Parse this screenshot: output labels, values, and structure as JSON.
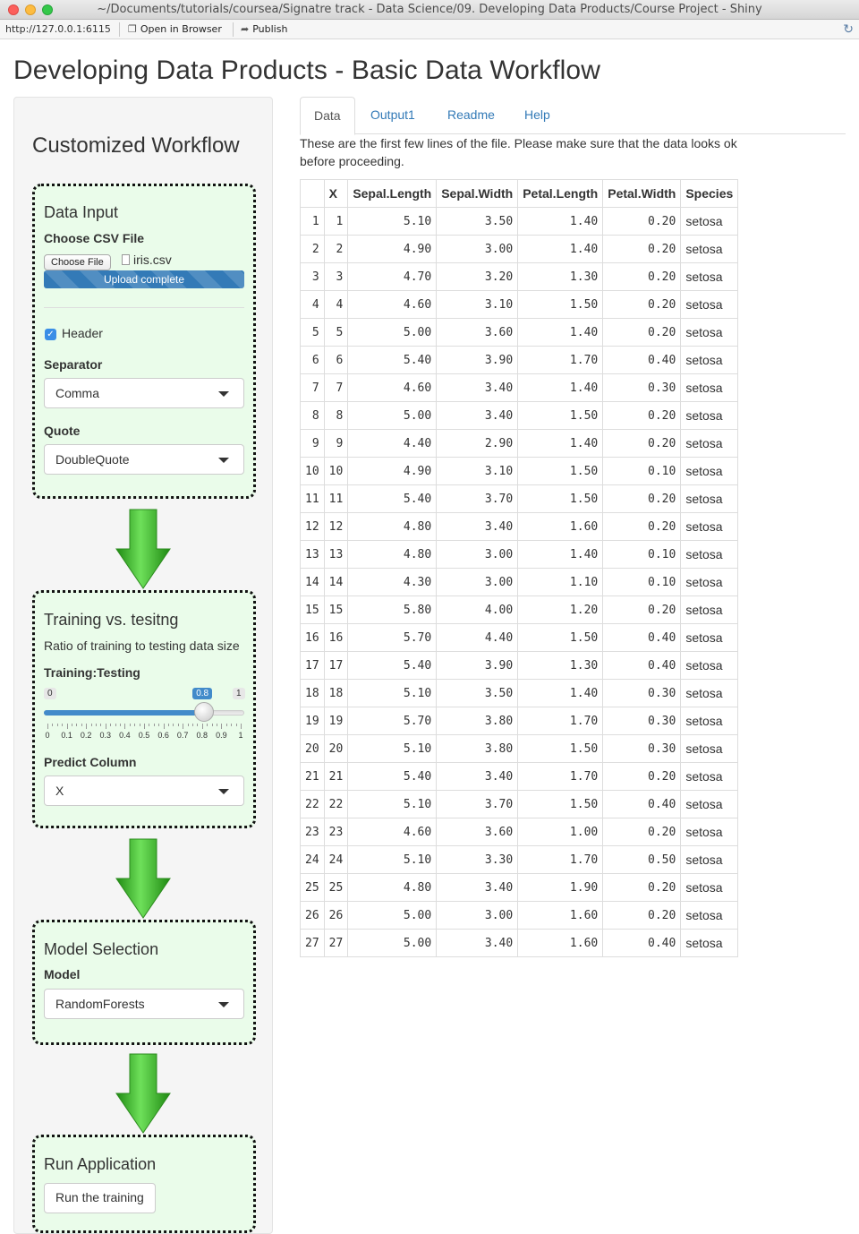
{
  "window": {
    "title": "~/Documents/tutorials/coursea/Signatre track - Data Science/09. Developing Data Products/Course Project - Shiny",
    "url": "http://127.0.0.1:6115",
    "open_in_browser": "Open in Browser",
    "publish": "Publish"
  },
  "page_title": "Developing Data Products - Basic Data Workflow",
  "sidebar": {
    "title": "Customized Workflow",
    "data_input": {
      "heading": "Data Input",
      "file_label": "Choose CSV File",
      "file_button": "Choose File",
      "file_name": "iris.csv",
      "progress_text": "Upload complete",
      "header_label": "Header",
      "header_checked": true,
      "separator_label": "Separator",
      "separator_value": "Comma",
      "quote_label": "Quote",
      "quote_value": "DoubleQuote"
    },
    "training": {
      "heading": "Training vs. tesitng",
      "description": "Ratio of training to testing data size",
      "slider_label": "Training:Testing",
      "slider_min": "0",
      "slider_max": "1",
      "slider_value": "0.8",
      "slider_fraction": 0.8,
      "ticks": [
        "0",
        "0.1",
        "0.2",
        "0.3",
        "0.4",
        "0.5",
        "0.6",
        "0.7",
        "0.8",
        "0.9",
        "1"
      ],
      "predict_label": "Predict Column",
      "predict_value": "X"
    },
    "model": {
      "heading": "Model Selection",
      "model_label": "Model",
      "model_value": "RandomForests"
    },
    "run": {
      "heading": "Run Application",
      "button": "Run the training"
    }
  },
  "tabs": [
    {
      "label": "Data",
      "active": true
    },
    {
      "label": "Output1",
      "active": false
    },
    {
      "label": "Readme",
      "active": false
    },
    {
      "label": "Help",
      "active": false
    }
  ],
  "intro_text": "These are the first few lines of the file. Please make sure that the data looks ok before proceeding.",
  "table": {
    "columns": [
      "",
      "X",
      "Sepal.Length",
      "Sepal.Width",
      "Petal.Length",
      "Petal.Width",
      "Species"
    ],
    "rows": [
      [
        "1",
        "1",
        "5.10",
        "3.50",
        "1.40",
        "0.20",
        "setosa"
      ],
      [
        "2",
        "2",
        "4.90",
        "3.00",
        "1.40",
        "0.20",
        "setosa"
      ],
      [
        "3",
        "3",
        "4.70",
        "3.20",
        "1.30",
        "0.20",
        "setosa"
      ],
      [
        "4",
        "4",
        "4.60",
        "3.10",
        "1.50",
        "0.20",
        "setosa"
      ],
      [
        "5",
        "5",
        "5.00",
        "3.60",
        "1.40",
        "0.20",
        "setosa"
      ],
      [
        "6",
        "6",
        "5.40",
        "3.90",
        "1.70",
        "0.40",
        "setosa"
      ],
      [
        "7",
        "7",
        "4.60",
        "3.40",
        "1.40",
        "0.30",
        "setosa"
      ],
      [
        "8",
        "8",
        "5.00",
        "3.40",
        "1.50",
        "0.20",
        "setosa"
      ],
      [
        "9",
        "9",
        "4.40",
        "2.90",
        "1.40",
        "0.20",
        "setosa"
      ],
      [
        "10",
        "10",
        "4.90",
        "3.10",
        "1.50",
        "0.10",
        "setosa"
      ],
      [
        "11",
        "11",
        "5.40",
        "3.70",
        "1.50",
        "0.20",
        "setosa"
      ],
      [
        "12",
        "12",
        "4.80",
        "3.40",
        "1.60",
        "0.20",
        "setosa"
      ],
      [
        "13",
        "13",
        "4.80",
        "3.00",
        "1.40",
        "0.10",
        "setosa"
      ],
      [
        "14",
        "14",
        "4.30",
        "3.00",
        "1.10",
        "0.10",
        "setosa"
      ],
      [
        "15",
        "15",
        "5.80",
        "4.00",
        "1.20",
        "0.20",
        "setosa"
      ],
      [
        "16",
        "16",
        "5.70",
        "4.40",
        "1.50",
        "0.40",
        "setosa"
      ],
      [
        "17",
        "17",
        "5.40",
        "3.90",
        "1.30",
        "0.40",
        "setosa"
      ],
      [
        "18",
        "18",
        "5.10",
        "3.50",
        "1.40",
        "0.30",
        "setosa"
      ],
      [
        "19",
        "19",
        "5.70",
        "3.80",
        "1.70",
        "0.30",
        "setosa"
      ],
      [
        "20",
        "20",
        "5.10",
        "3.80",
        "1.50",
        "0.30",
        "setosa"
      ],
      [
        "21",
        "21",
        "5.40",
        "3.40",
        "1.70",
        "0.20",
        "setosa"
      ],
      [
        "22",
        "22",
        "5.10",
        "3.70",
        "1.50",
        "0.40",
        "setosa"
      ],
      [
        "23",
        "23",
        "4.60",
        "3.60",
        "1.00",
        "0.20",
        "setosa"
      ],
      [
        "24",
        "24",
        "5.10",
        "3.30",
        "1.70",
        "0.50",
        "setosa"
      ],
      [
        "25",
        "25",
        "4.80",
        "3.40",
        "1.90",
        "0.20",
        "setosa"
      ],
      [
        "26",
        "26",
        "5.00",
        "3.00",
        "1.60",
        "0.20",
        "setosa"
      ],
      [
        "27",
        "27",
        "5.00",
        "3.40",
        "1.60",
        "0.40",
        "setosa"
      ]
    ]
  },
  "colors": {
    "accent": "#337ab7",
    "step_bg": "#eafcea",
    "arrow": "#3cc22a"
  },
  "icons": [
    "open-in-browser-icon",
    "publish-icon",
    "refresh-icon",
    "file-icon",
    "caret-down-icon",
    "checkmark-icon",
    "down-arrow-icon"
  ]
}
